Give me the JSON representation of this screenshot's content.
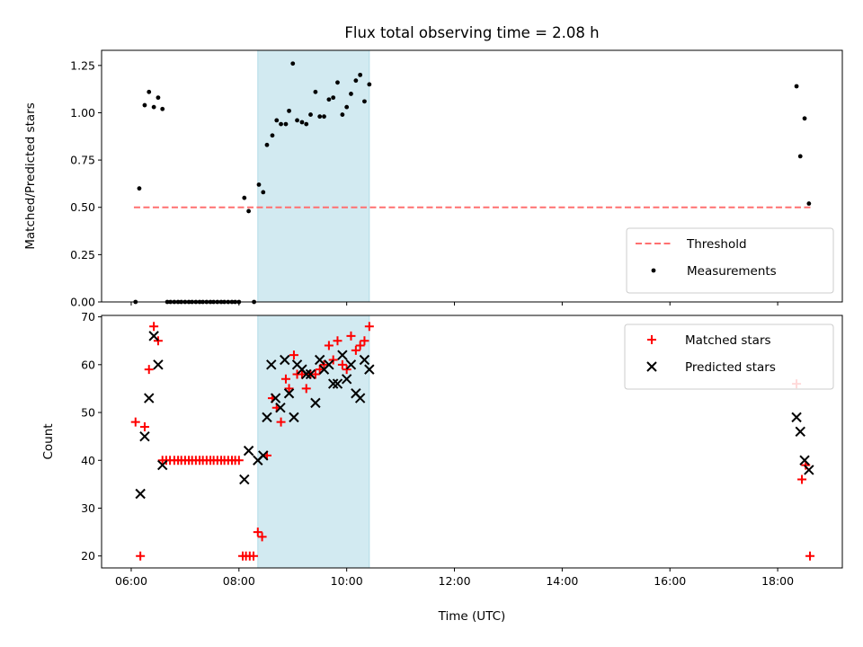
{
  "chart_data": {
    "title": "Flux total observing time = 2.08 h",
    "xlabel": "Time (UTC)",
    "x_unit": "hours UTC",
    "xlim": [
      5.45,
      19.2
    ],
    "x_ticks": [
      {
        "value": 6,
        "label": "06:00"
      },
      {
        "value": 8,
        "label": "08:00"
      },
      {
        "value": 10,
        "label": "10:00"
      },
      {
        "value": 12,
        "label": "12:00"
      },
      {
        "value": 14,
        "label": "14:00"
      },
      {
        "value": 16,
        "label": "16:00"
      },
      {
        "value": 18,
        "label": "18:00"
      }
    ],
    "highlight_span": {
      "x_start": 8.35,
      "x_end": 10.42,
      "color": "#add8e6"
    },
    "panels": [
      {
        "type": "scatter",
        "ylabel": "Matched/Predicted stars",
        "ylim": [
          0,
          1.33
        ],
        "y_ticks": [
          "0.00",
          "0.25",
          "0.50",
          "0.75",
          "1.00",
          "1.25"
        ],
        "grid": false,
        "legend_position": "lower right",
        "threshold": {
          "name": "Threshold",
          "value": 0.5,
          "x_start": 6.05,
          "x_end": 18.62,
          "color": "#ff7070"
        },
        "series": [
          {
            "name": "Measurements",
            "color": "#000000",
            "points": [
              [
                6.08,
                0.0
              ],
              [
                6.15,
                0.6
              ],
              [
                6.25,
                1.04
              ],
              [
                6.33,
                1.11
              ],
              [
                6.42,
                1.03
              ],
              [
                6.5,
                1.08
              ],
              [
                6.58,
                1.02
              ],
              [
                6.67,
                0.0
              ],
              [
                6.73,
                0.0
              ],
              [
                6.8,
                0.0
              ],
              [
                6.87,
                0.0
              ],
              [
                6.93,
                0.0
              ],
              [
                7.0,
                0.0
              ],
              [
                7.07,
                0.0
              ],
              [
                7.13,
                0.0
              ],
              [
                7.2,
                0.0
              ],
              [
                7.27,
                0.0
              ],
              [
                7.33,
                0.0
              ],
              [
                7.4,
                0.0
              ],
              [
                7.47,
                0.0
              ],
              [
                7.53,
                0.0
              ],
              [
                7.6,
                0.0
              ],
              [
                7.67,
                0.0
              ],
              [
                7.73,
                0.0
              ],
              [
                7.8,
                0.0
              ],
              [
                7.87,
                0.0
              ],
              [
                7.93,
                0.0
              ],
              [
                8.0,
                0.0
              ],
              [
                8.1,
                0.55
              ],
              [
                8.18,
                0.48
              ],
              [
                8.28,
                0.0
              ],
              [
                8.37,
                0.62
              ],
              [
                8.45,
                0.58
              ],
              [
                8.52,
                0.83
              ],
              [
                8.62,
                0.88
              ],
              [
                8.7,
                0.96
              ],
              [
                8.78,
                0.94
              ],
              [
                8.87,
                0.94
              ],
              [
                8.93,
                1.01
              ],
              [
                9.0,
                1.26
              ],
              [
                9.08,
                0.96
              ],
              [
                9.17,
                0.95
              ],
              [
                9.25,
                0.94
              ],
              [
                9.33,
                0.99
              ],
              [
                9.42,
                1.11
              ],
              [
                9.5,
                0.98
              ],
              [
                9.58,
                0.98
              ],
              [
                9.67,
                1.07
              ],
              [
                9.75,
                1.08
              ],
              [
                9.83,
                1.16
              ],
              [
                9.92,
                0.99
              ],
              [
                10.0,
                1.03
              ],
              [
                10.08,
                1.1
              ],
              [
                10.17,
                1.17
              ],
              [
                10.25,
                1.2
              ],
              [
                10.33,
                1.06
              ],
              [
                10.42,
                1.15
              ],
              [
                18.35,
                1.14
              ],
              [
                18.42,
                0.77
              ],
              [
                18.5,
                0.97
              ],
              [
                18.58,
                0.52
              ]
            ]
          }
        ]
      },
      {
        "type": "scatter",
        "ylabel": "Count",
        "ylim": [
          17.5,
          70.3
        ],
        "y_ticks": [
          "20",
          "30",
          "40",
          "50",
          "60",
          "70"
        ],
        "grid": false,
        "legend_position": "upper right",
        "series": [
          {
            "name": "Matched stars",
            "marker": "plus",
            "color": "#ff0000",
            "points": [
              [
                6.08,
                48
              ],
              [
                6.17,
                20
              ],
              [
                6.25,
                47
              ],
              [
                6.33,
                59
              ],
              [
                6.42,
                68
              ],
              [
                6.5,
                65
              ],
              [
                6.58,
                40
              ],
              [
                6.65,
                40
              ],
              [
                6.72,
                40
              ],
              [
                6.8,
                40
              ],
              [
                6.87,
                40
              ],
              [
                6.93,
                40
              ],
              [
                7.0,
                40
              ],
              [
                7.07,
                40
              ],
              [
                7.13,
                40
              ],
              [
                7.2,
                40
              ],
              [
                7.27,
                40
              ],
              [
                7.33,
                40
              ],
              [
                7.4,
                40
              ],
              [
                7.47,
                40
              ],
              [
                7.53,
                40
              ],
              [
                7.6,
                40
              ],
              [
                7.67,
                40
              ],
              [
                7.73,
                40
              ],
              [
                7.8,
                40
              ],
              [
                7.87,
                40
              ],
              [
                7.93,
                40
              ],
              [
                8.0,
                40
              ],
              [
                8.07,
                20
              ],
              [
                8.13,
                20
              ],
              [
                8.2,
                20
              ],
              [
                8.27,
                20
              ],
              [
                8.35,
                25
              ],
              [
                8.43,
                24
              ],
              [
                8.52,
                41
              ],
              [
                8.62,
                53
              ],
              [
                8.7,
                51
              ],
              [
                8.78,
                48
              ],
              [
                8.87,
                57
              ],
              [
                8.93,
                55
              ],
              [
                9.02,
                62
              ],
              [
                9.08,
                58
              ],
              [
                9.17,
                58
              ],
              [
                9.25,
                55
              ],
              [
                9.33,
                58
              ],
              [
                9.42,
                58
              ],
              [
                9.5,
                59
              ],
              [
                9.58,
                60
              ],
              [
                9.67,
                64
              ],
              [
                9.75,
                61
              ],
              [
                9.83,
                65
              ],
              [
                9.92,
                60
              ],
              [
                10.0,
                59
              ],
              [
                10.08,
                66
              ],
              [
                10.17,
                63
              ],
              [
                10.25,
                64
              ],
              [
                10.33,
                65
              ],
              [
                10.42,
                68
              ],
              [
                18.35,
                56
              ],
              [
                18.45,
                36
              ],
              [
                18.52,
                39
              ],
              [
                18.6,
                20
              ]
            ]
          },
          {
            "name": "Predicted stars",
            "marker": "x",
            "color": "#000000",
            "points": [
              [
                6.17,
                33
              ],
              [
                6.25,
                45
              ],
              [
                6.33,
                53
              ],
              [
                6.42,
                66
              ],
              [
                6.5,
                60
              ],
              [
                6.58,
                39
              ],
              [
                8.1,
                36
              ],
              [
                8.18,
                42
              ],
              [
                8.35,
                40
              ],
              [
                8.45,
                41
              ],
              [
                8.52,
                49
              ],
              [
                8.6,
                60
              ],
              [
                8.68,
                53
              ],
              [
                8.77,
                51
              ],
              [
                8.85,
                61
              ],
              [
                8.93,
                54
              ],
              [
                9.02,
                49
              ],
              [
                9.08,
                60
              ],
              [
                9.17,
                59
              ],
              [
                9.25,
                58
              ],
              [
                9.33,
                58
              ],
              [
                9.42,
                52
              ],
              [
                9.5,
                61
              ],
              [
                9.58,
                59
              ],
              [
                9.67,
                60
              ],
              [
                9.75,
                56
              ],
              [
                9.83,
                56
              ],
              [
                9.92,
                62
              ],
              [
                10.0,
                57
              ],
              [
                10.08,
                60
              ],
              [
                10.17,
                54
              ],
              [
                10.25,
                53
              ],
              [
                10.33,
                61
              ],
              [
                10.42,
                59
              ],
              [
                18.35,
                49
              ],
              [
                18.42,
                46
              ],
              [
                18.5,
                40
              ],
              [
                18.58,
                38
              ]
            ]
          }
        ]
      }
    ]
  }
}
